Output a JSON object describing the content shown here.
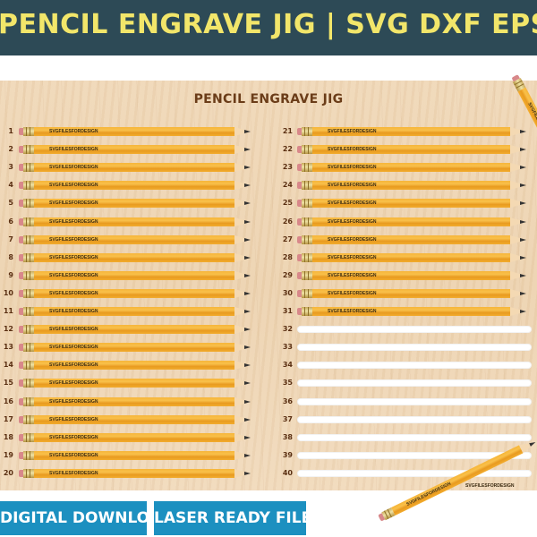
{
  "banner": {
    "title": "PENCIL ENGRAVE JIG | SVG DXF EPS DWG PDF"
  },
  "jig": {
    "title": "PENCIL ENGRAVE JIG",
    "brand": "SVGFILESFORDESIGN",
    "pencil_brand": "SVGFILESFORDESIGN",
    "left_slots": [
      "1",
      "2",
      "3",
      "4",
      "5",
      "6",
      "7",
      "8",
      "9",
      "10",
      "11",
      "12",
      "13",
      "14",
      "15",
      "16",
      "17",
      "18",
      "19",
      "20"
    ],
    "right_slots": [
      "21",
      "22",
      "23",
      "24",
      "25",
      "26",
      "27",
      "28",
      "29",
      "30",
      "31",
      "32",
      "33",
      "34",
      "35",
      "36",
      "37",
      "38",
      "39",
      "40"
    ],
    "filled_right_count": 11
  },
  "buttons": {
    "digital_download": "DIGITAL DOWNLOAD",
    "laser_ready": "LASER READY FILE"
  },
  "colors": {
    "banner_bg": "#2d4a56",
    "banner_text": "#f2e66a",
    "button_bg": "#1c90c0",
    "title_text": "#6b3d19",
    "pencil_yellow": "#f6b63a"
  }
}
